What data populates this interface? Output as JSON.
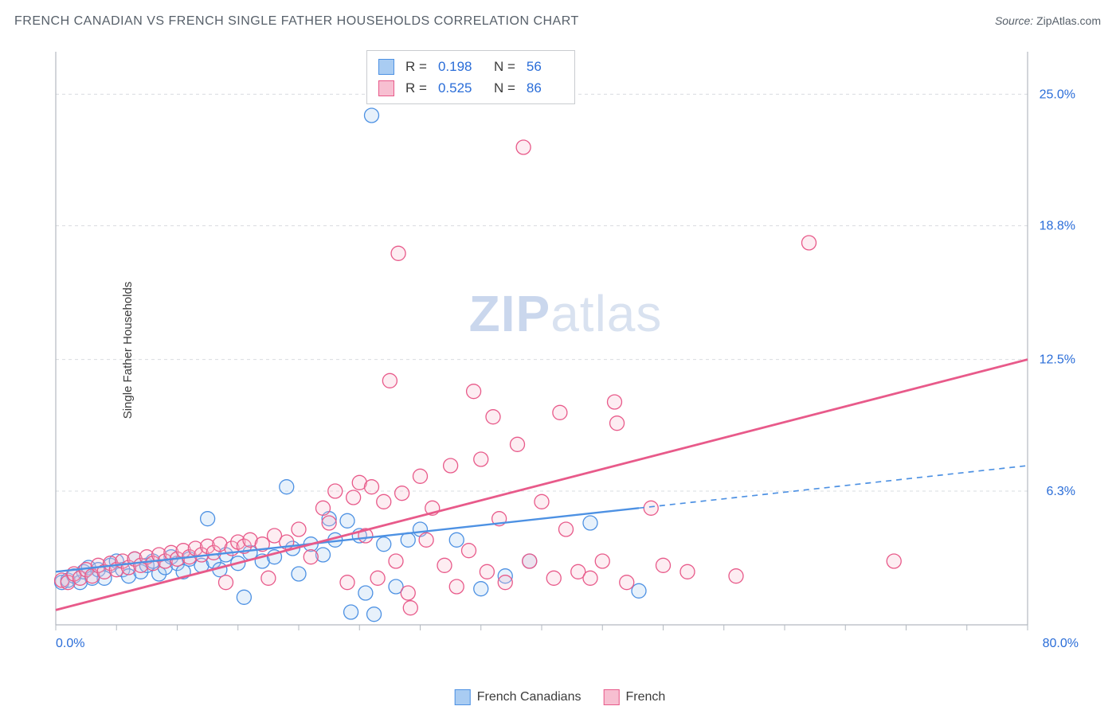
{
  "title": "FRENCH CANADIAN VS FRENCH SINGLE FATHER HOUSEHOLDS CORRELATION CHART",
  "source_label": "Source:",
  "source_value": "ZipAtlas.com",
  "ylabel": "Single Father Households",
  "watermark_bold": "ZIP",
  "watermark_rest": "atlas",
  "chart": {
    "type": "scatter",
    "background_color": "#ffffff",
    "grid_color": "#d9dce0",
    "axis_color": "#b3b9c0",
    "axis_label_color": "#2a6dd8",
    "text_color": "#3c3c3c",
    "xlim": [
      0,
      80
    ],
    "ylim": [
      0,
      27
    ],
    "xtick_step": 5,
    "xtick_labels": {
      "0": "0.0%",
      "80": "80.0%"
    },
    "ytick_positions": [
      6.3,
      12.5,
      18.8,
      25.0
    ],
    "ytick_labels": [
      "6.3%",
      "12.5%",
      "18.8%",
      "25.0%"
    ],
    "marker_radius": 9,
    "marker_stroke_width": 1.3,
    "marker_fill_opacity": 0.28,
    "series": [
      {
        "name": "French Canadians",
        "color": "#4d91e3",
        "fill": "#a9ccf2",
        "R": "0.198",
        "N": "56",
        "trend": {
          "x1": 0,
          "y1": 2.5,
          "x2": 48,
          "y2": 5.5,
          "dash_to_x": 80,
          "dash_to_y": 7.5,
          "width": 2.4
        },
        "points": [
          [
            0.5,
            2.0
          ],
          [
            1.0,
            2.1
          ],
          [
            1.5,
            2.3
          ],
          [
            2.0,
            2.0
          ],
          [
            2.3,
            2.5
          ],
          [
            2.7,
            2.7
          ],
          [
            3.0,
            2.2
          ],
          [
            3.5,
            2.6
          ],
          [
            4.0,
            2.2
          ],
          [
            4.5,
            2.8
          ],
          [
            5.0,
            3.0
          ],
          [
            5.5,
            2.6
          ],
          [
            6.0,
            2.3
          ],
          [
            6.5,
            3.1
          ],
          [
            7.0,
            2.5
          ],
          [
            7.5,
            2.8
          ],
          [
            8.0,
            3.0
          ],
          [
            8.5,
            2.4
          ],
          [
            9.0,
            2.7
          ],
          [
            9.5,
            3.2
          ],
          [
            10.0,
            2.9
          ],
          [
            10.5,
            2.5
          ],
          [
            11.0,
            3.1
          ],
          [
            12.0,
            2.8
          ],
          [
            12.5,
            5.0
          ],
          [
            13.0,
            3.0
          ],
          [
            13.5,
            2.6
          ],
          [
            14.0,
            3.3
          ],
          [
            15.0,
            2.9
          ],
          [
            15.5,
            1.3
          ],
          [
            16.0,
            3.4
          ],
          [
            17.0,
            3.0
          ],
          [
            18.0,
            3.2
          ],
          [
            19.0,
            6.5
          ],
          [
            19.5,
            3.6
          ],
          [
            20.0,
            2.4
          ],
          [
            21.0,
            3.8
          ],
          [
            22.0,
            3.3
          ],
          [
            22.5,
            5.0
          ],
          [
            23.0,
            4.0
          ],
          [
            24.0,
            4.9
          ],
          [
            24.3,
            0.6
          ],
          [
            25.0,
            4.2
          ],
          [
            25.5,
            1.5
          ],
          [
            26.0,
            24.0
          ],
          [
            26.2,
            0.5
          ],
          [
            27.0,
            3.8
          ],
          [
            28.0,
            1.8
          ],
          [
            29.0,
            4.0
          ],
          [
            30.0,
            4.5
          ],
          [
            33.0,
            4.0
          ],
          [
            35.0,
            1.7
          ],
          [
            37.0,
            2.3
          ],
          [
            39.0,
            3.0
          ],
          [
            44.0,
            4.8
          ],
          [
            48.0,
            1.6
          ]
        ]
      },
      {
        "name": "French",
        "color": "#e85a8a",
        "fill": "#f7bfd1",
        "R": "0.525",
        "N": "86",
        "trend": {
          "x1": 0,
          "y1": 0.7,
          "x2": 80,
          "y2": 12.5,
          "width": 2.8
        },
        "points": [
          [
            0.5,
            2.1
          ],
          [
            1.0,
            2.0
          ],
          [
            1.5,
            2.4
          ],
          [
            2.0,
            2.2
          ],
          [
            2.5,
            2.6
          ],
          [
            3.0,
            2.3
          ],
          [
            3.5,
            2.8
          ],
          [
            4.0,
            2.5
          ],
          [
            4.5,
            2.9
          ],
          [
            5.0,
            2.6
          ],
          [
            5.5,
            3.0
          ],
          [
            6.0,
            2.7
          ],
          [
            6.5,
            3.1
          ],
          [
            7.0,
            2.8
          ],
          [
            7.5,
            3.2
          ],
          [
            8.0,
            2.9
          ],
          [
            8.5,
            3.3
          ],
          [
            9.0,
            3.0
          ],
          [
            9.5,
            3.4
          ],
          [
            10.0,
            3.1
          ],
          [
            10.5,
            3.5
          ],
          [
            11.0,
            3.2
          ],
          [
            11.5,
            3.6
          ],
          [
            12.0,
            3.3
          ],
          [
            12.5,
            3.7
          ],
          [
            13.0,
            3.4
          ],
          [
            13.5,
            3.8
          ],
          [
            14.0,
            2.0
          ],
          [
            14.5,
            3.6
          ],
          [
            15.0,
            3.9
          ],
          [
            15.5,
            3.7
          ],
          [
            16.0,
            4.0
          ],
          [
            17.0,
            3.8
          ],
          [
            17.5,
            2.2
          ],
          [
            18.0,
            4.2
          ],
          [
            19.0,
            3.9
          ],
          [
            20.0,
            4.5
          ],
          [
            21.0,
            3.2
          ],
          [
            22.0,
            5.5
          ],
          [
            22.5,
            4.8
          ],
          [
            23.0,
            6.3
          ],
          [
            24.0,
            2.0
          ],
          [
            24.5,
            6.0
          ],
          [
            25.0,
            6.7
          ],
          [
            25.5,
            4.2
          ],
          [
            26.0,
            6.5
          ],
          [
            26.5,
            2.2
          ],
          [
            27.0,
            5.8
          ],
          [
            27.5,
            11.5
          ],
          [
            28.0,
            3.0
          ],
          [
            28.2,
            17.5
          ],
          [
            28.5,
            6.2
          ],
          [
            29.0,
            1.5
          ],
          [
            29.2,
            0.8
          ],
          [
            30.0,
            7.0
          ],
          [
            30.5,
            4.0
          ],
          [
            31.0,
            5.5
          ],
          [
            32.0,
            2.8
          ],
          [
            32.5,
            7.5
          ],
          [
            33.0,
            1.8
          ],
          [
            34.0,
            3.5
          ],
          [
            34.4,
            11.0
          ],
          [
            35.0,
            7.8
          ],
          [
            35.5,
            2.5
          ],
          [
            36.0,
            9.8
          ],
          [
            36.5,
            5.0
          ],
          [
            37.0,
            2.0
          ],
          [
            38.0,
            8.5
          ],
          [
            38.5,
            22.5
          ],
          [
            39.0,
            3.0
          ],
          [
            40.0,
            5.8
          ],
          [
            41.0,
            2.2
          ],
          [
            41.5,
            10.0
          ],
          [
            42.0,
            4.5
          ],
          [
            43.0,
            2.5
          ],
          [
            44.0,
            2.2
          ],
          [
            45.0,
            3.0
          ],
          [
            46.0,
            10.5
          ],
          [
            46.2,
            9.5
          ],
          [
            47.0,
            2.0
          ],
          [
            49.0,
            5.5
          ],
          [
            50.0,
            2.8
          ],
          [
            52.0,
            2.5
          ],
          [
            56.0,
            2.3
          ],
          [
            62.0,
            18.0
          ],
          [
            69.0,
            3.0
          ]
        ]
      }
    ]
  },
  "stats_box": {
    "r_label": "R  =",
    "n_label": "N  ="
  },
  "bottom_legend": [
    {
      "label": "French Canadians",
      "color": "#4d91e3",
      "fill": "#a9ccf2"
    },
    {
      "label": "French",
      "color": "#e85a8a",
      "fill": "#f7bfd1"
    }
  ]
}
